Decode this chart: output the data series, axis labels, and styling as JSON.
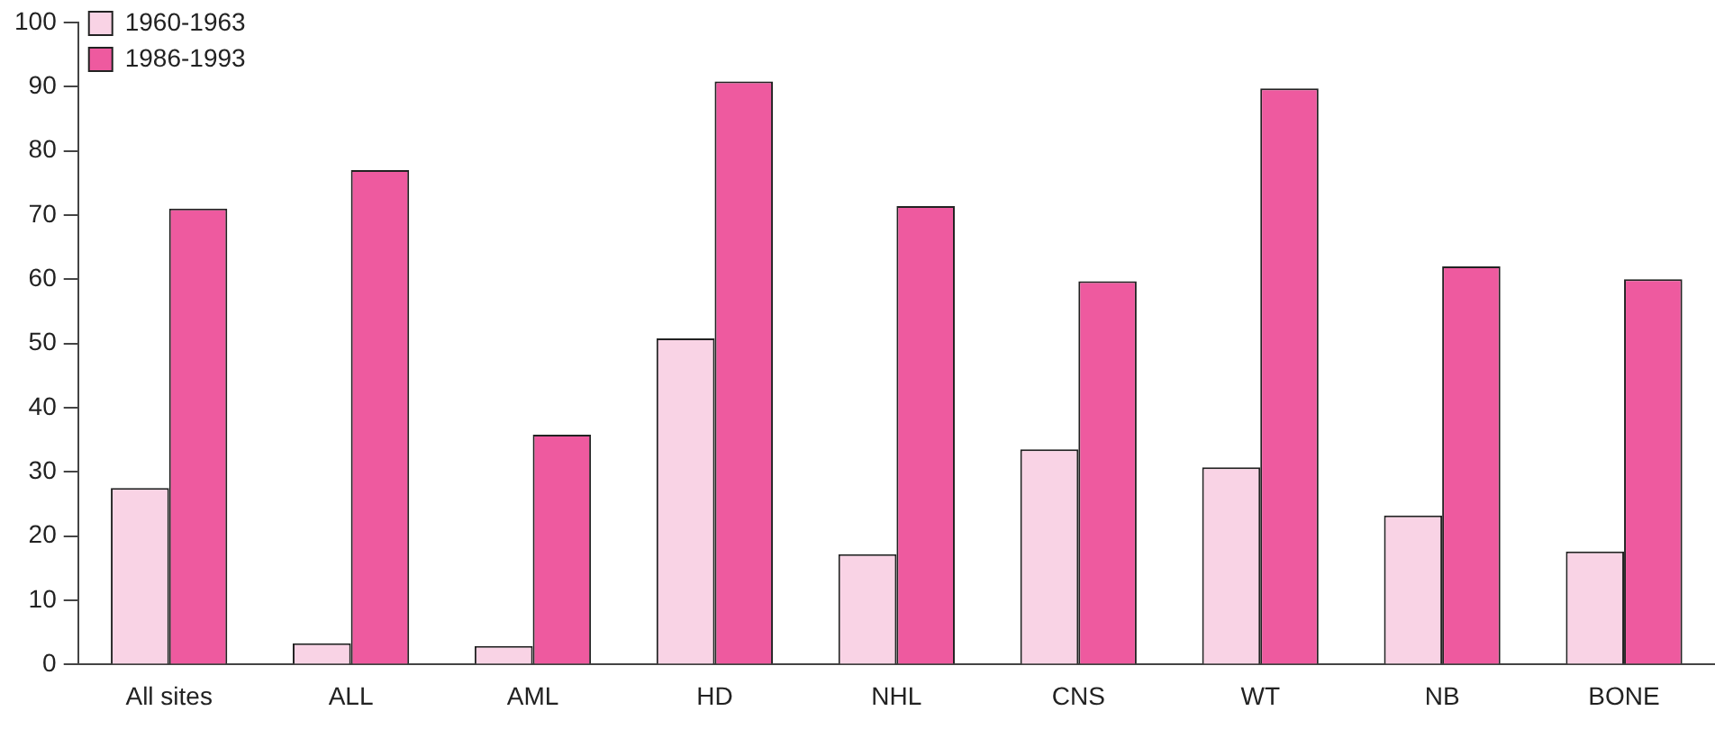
{
  "chart_data": {
    "type": "bar",
    "categories": [
      "All sites",
      "ALL",
      "AML",
      "HD",
      "NHL",
      "CNS",
      "WT",
      "NB",
      "BONE"
    ],
    "series": [
      {
        "name": "1960-1963",
        "color": "#f9d3e5",
        "values": [
          27.5,
          3.3,
          2.9,
          50.8,
          17.2,
          33.5,
          30.7,
          23.2,
          17.6
        ]
      },
      {
        "name": "1986-1993",
        "color": "#ee5a9f",
        "values": [
          71,
          77,
          35.8,
          90.8,
          71.4,
          59.7,
          89.7,
          62,
          60
        ]
      }
    ],
    "ylim": [
      0,
      100
    ],
    "yticks": [
      0,
      10,
      20,
      30,
      40,
      50,
      60,
      70,
      80,
      90,
      100
    ],
    "grid": false,
    "legend": "top left"
  }
}
